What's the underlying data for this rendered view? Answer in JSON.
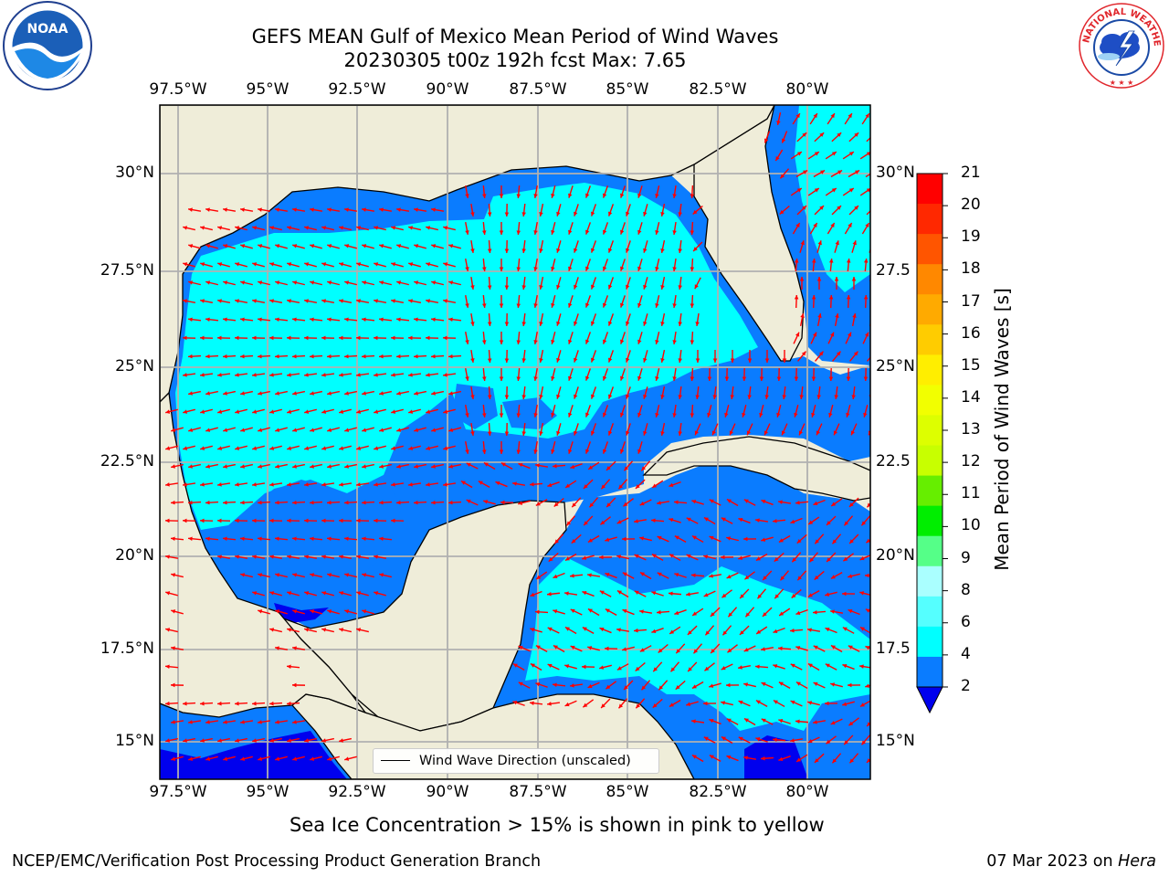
{
  "title": {
    "line1": "GEFS MEAN Gulf of Mexico Mean Period of Wind Waves",
    "line2": "20230305 t00z 192h fcst   Max: 7.65"
  },
  "logos": {
    "noaa": {
      "icon": "noaa-logo-icon",
      "text": "NOAA"
    },
    "nws": {
      "icon": "nws-logo-icon",
      "ring_text": "NATIONAL WEATHER SERVICE"
    }
  },
  "map": {
    "lon_labels": [
      "97.5°W",
      "95°W",
      "92.5°W",
      "90°W",
      "87.5°W",
      "85°W",
      "82.5°W",
      "80°W"
    ],
    "lat_labels_left": [
      "30°N",
      "27.5°N",
      "25°N",
      "22.5°N",
      "20°N",
      "17.5°N",
      "15°N"
    ],
    "lat_labels_right": [
      "30°N",
      "27.5",
      "25°N",
      "22.5",
      "20°N",
      "17.5",
      "15°N"
    ],
    "colors": {
      "land": "#efedd9",
      "coast": "#000000",
      "grid": "#b0b0b0",
      "arrow": "#ff0000",
      "band_2_4": "#0a7cff",
      "band_4_6": "#00ffff",
      "below_2": "#0000ee"
    },
    "legend": {
      "label": "Wind Wave Direction (unscaled)"
    }
  },
  "colorbar": {
    "label": "Mean Period of Wind Waves [s]",
    "ticks": [
      "21",
      "20",
      "19",
      "18",
      "17",
      "16",
      "15",
      "14",
      "13",
      "12",
      "11",
      "10",
      "9",
      "8",
      "6",
      "4",
      "2"
    ],
    "colors": [
      "#ff0000",
      "#ff2800",
      "#ff5500",
      "#ff8800",
      "#ffaa00",
      "#ffcc00",
      "#ffee00",
      "#f2ff00",
      "#ddff00",
      "#c8ff00",
      "#66ee00",
      "#00ee00",
      "#55ff88",
      "#aaffff",
      "#55ffff",
      "#00ffff",
      "#0a7cff"
    ],
    "extend_color": "#0000ee"
  },
  "subtitle": "Sea Ice Concentration > 15% is shown in pink to yellow",
  "footer": {
    "left": "NCEP/EMC/Verification Post Processing Product Generation Branch",
    "date": "07 Mar 2023 on ",
    "machine": "Hera"
  }
}
